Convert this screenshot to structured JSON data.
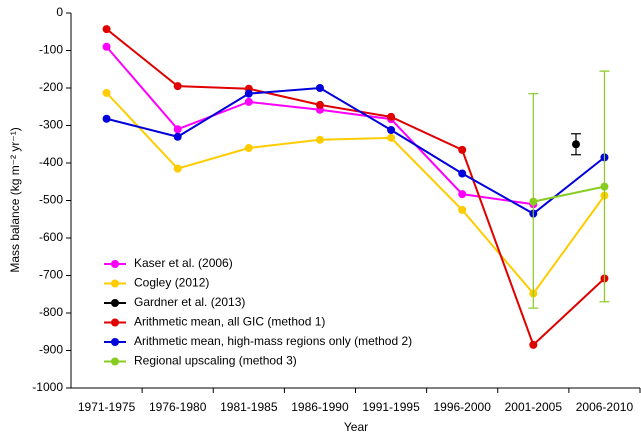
{
  "chart_data": {
    "type": "line",
    "x_label": "Year",
    "y_label": "Mass balance (kg m⁻² yr⁻¹)",
    "categories": [
      "1971-1975",
      "1976-1980",
      "1981-1985",
      "1986-1990",
      "1991-1995",
      "1996-2000",
      "2001-2005",
      "2006-2010"
    ],
    "ylim": [
      -1000,
      0
    ],
    "yticks": [
      0,
      -100,
      -200,
      -300,
      -400,
      -500,
      -600,
      -700,
      -800,
      -900,
      -1000
    ],
    "legend": "lower left",
    "series": [
      {
        "name": "Kaser et al. (2006)",
        "color": "#ff00ff",
        "values": [
          -90,
          -310,
          -237,
          -258,
          -283,
          -483,
          -510,
          null
        ]
      },
      {
        "name": "Cogley (2012)",
        "color": "#ffcc00",
        "values": [
          -213,
          -415,
          -360,
          -338,
          -333,
          -525,
          -748,
          -487
        ]
      },
      {
        "name": "Gardner et al. (2013)",
        "color": "#000000",
        "placement": "between",
        "values": [
          null,
          null,
          null,
          null,
          null,
          null,
          -350,
          null
        ],
        "error_range": [
          null,
          null,
          null,
          null,
          null,
          null,
          [
            -378,
            -322
          ],
          null
        ]
      },
      {
        "name": "Arithmetic mean, all GIC (method 1)",
        "color": "#e00000",
        "values": [
          -43,
          -195,
          -202,
          -245,
          -277,
          -365,
          -885,
          -708
        ]
      },
      {
        "name": "Arithmetic mean, high-mass regions only (method 2)",
        "color": "#0000dd",
        "values": [
          -282,
          -330,
          -215,
          -200,
          -312,
          -428,
          -535,
          -385
        ]
      },
      {
        "name": "Regional upscaling (method 3)",
        "color": "#88cc22",
        "values": [
          null,
          null,
          null,
          null,
          null,
          null,
          -503,
          -463
        ],
        "error_range": [
          null,
          null,
          null,
          null,
          null,
          null,
          [
            -787,
            -215
          ],
          [
            -770,
            -155
          ]
        ]
      }
    ]
  }
}
